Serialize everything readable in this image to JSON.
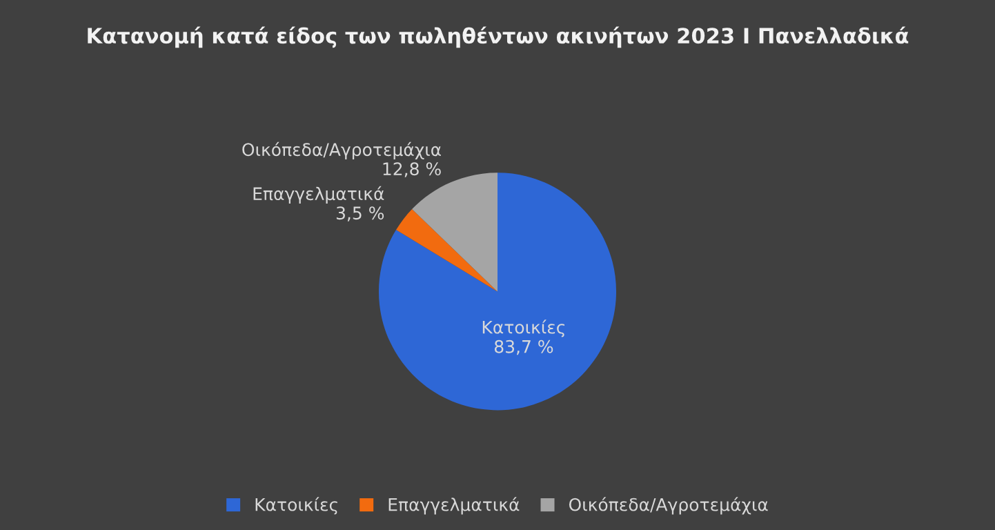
{
  "chart_data": {
    "type": "pie",
    "title": "Κατανομή κατά είδος των πωληθέντων ακινήτων 2023 Ι Πανελλαδικά",
    "categories": [
      "Κατοικίες",
      "Επαγγελματικά",
      "Οικόπεδα/Αγροτεμάχια"
    ],
    "values": [
      83.7,
      3.5,
      12.8
    ],
    "colors": [
      "#2e67d6",
      "#f26b0f",
      "#a5a5a5"
    ],
    "value_labels": [
      "83,7 %",
      "3,5 %",
      "12,8 %"
    ],
    "legend": "bottom"
  }
}
